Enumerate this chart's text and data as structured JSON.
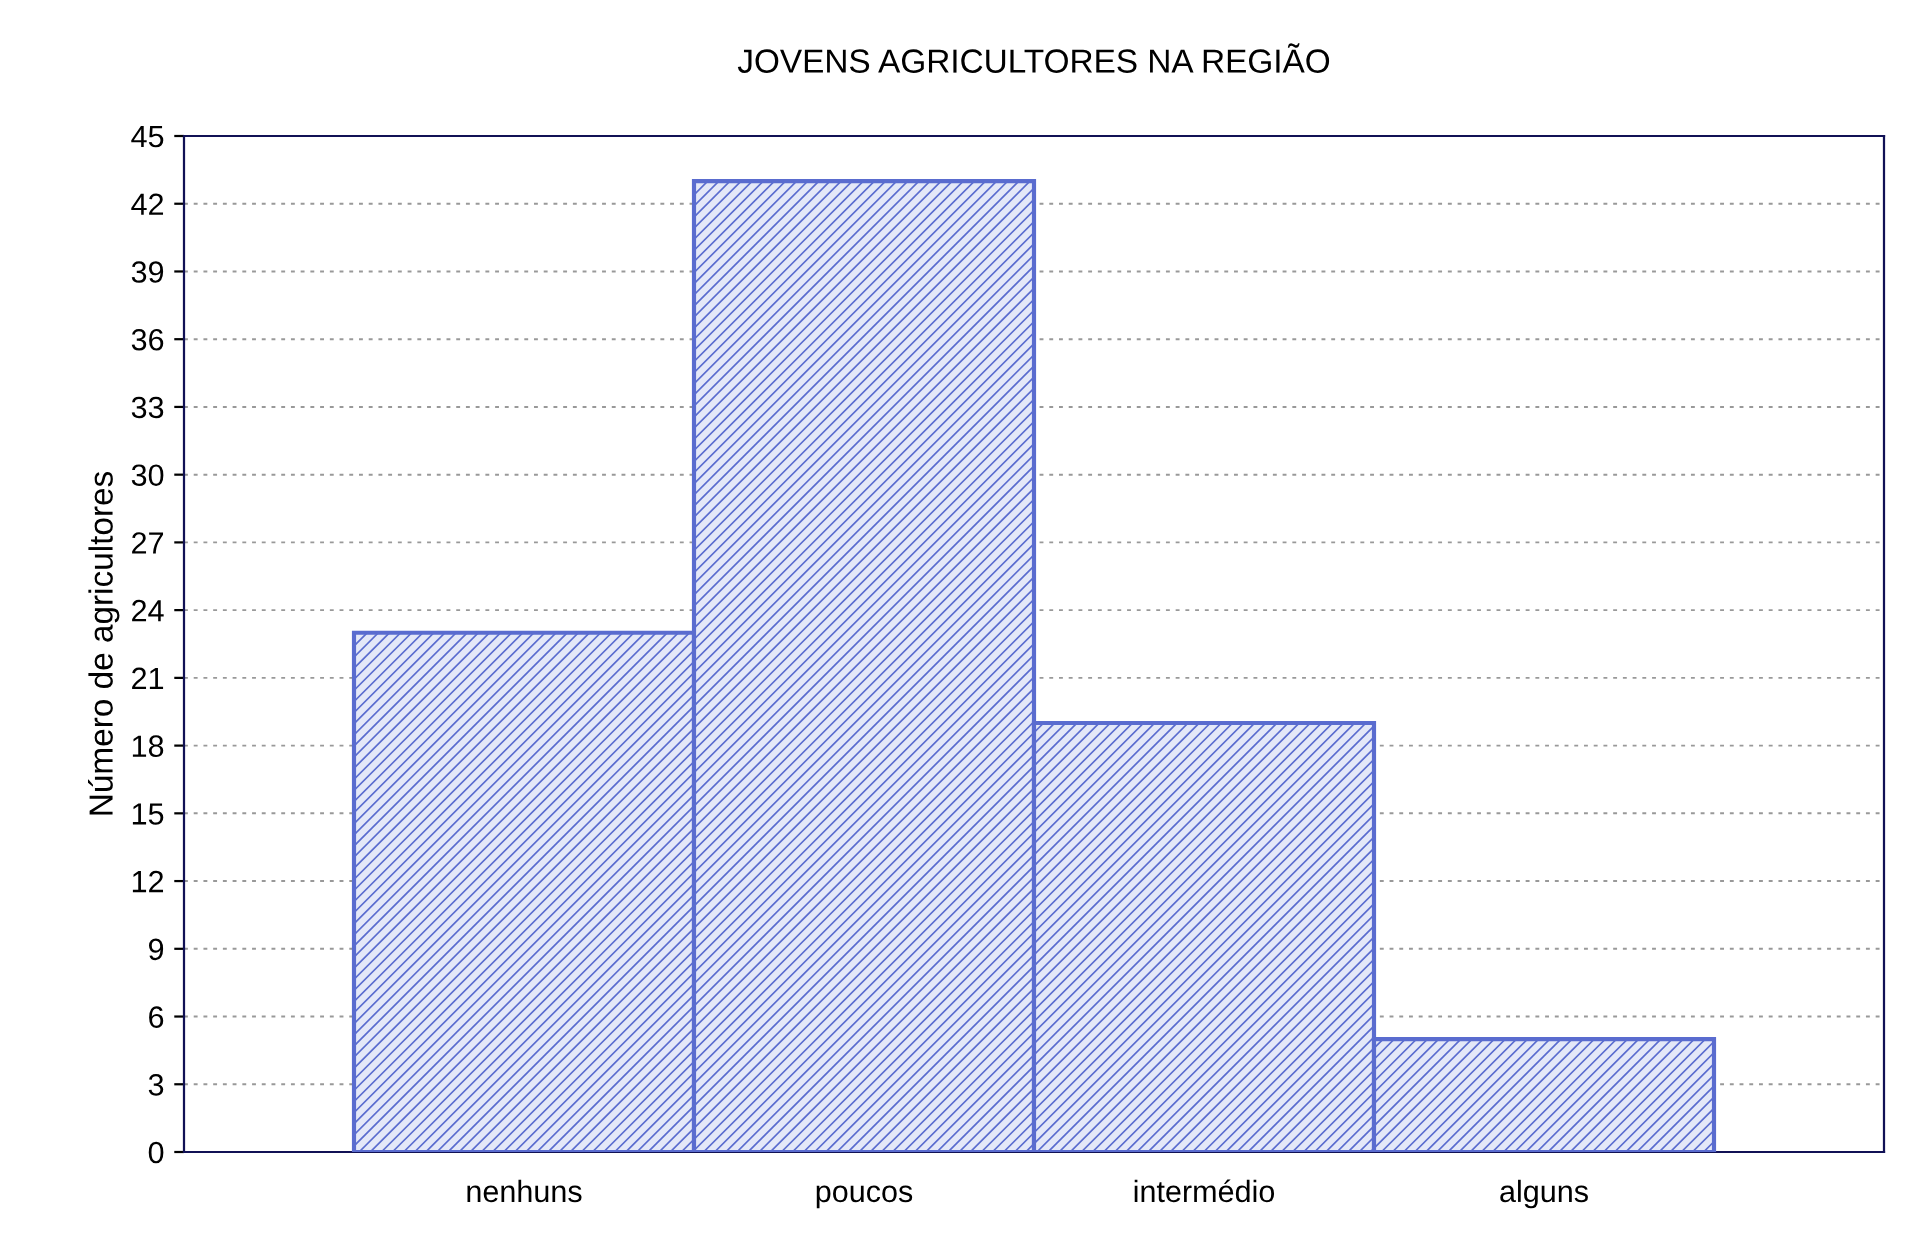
{
  "chart_data": {
    "type": "bar",
    "title": "JOVENS AGRICULTORES NA REGIÃO",
    "ylabel": "Número de agricultores",
    "categories": [
      "nenhuns",
      "poucos",
      "intermédio",
      "alguns"
    ],
    "values": [
      23,
      43,
      19,
      5
    ],
    "color": "#5a6ccf",
    "ylim": [
      0,
      45
    ],
    "yticks": [
      0,
      3,
      6,
      9,
      12,
      15,
      18,
      21,
      24,
      27,
      30,
      33,
      36,
      39,
      42,
      45
    ],
    "grid": "y"
  }
}
